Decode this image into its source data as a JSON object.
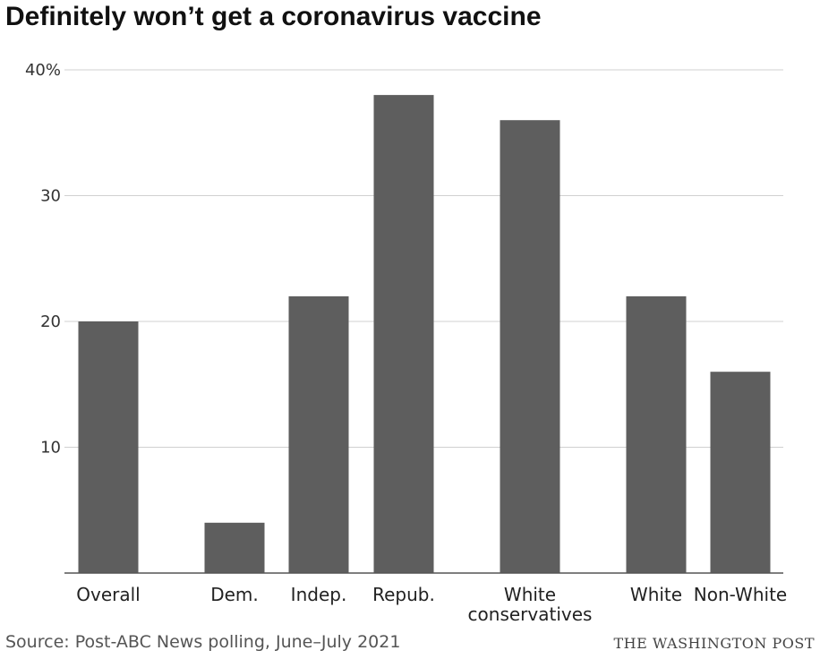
{
  "chart_data": {
    "type": "bar",
    "title": "Definitely won’t get a coronavirus vaccine",
    "categories": [
      "Overall",
      "Dem.",
      "Indep.",
      "Repub.",
      "White conservatives",
      "White",
      "Non-White"
    ],
    "category_lines": [
      [
        "Overall"
      ],
      [
        "Dem."
      ],
      [
        "Indep."
      ],
      [
        "Repub."
      ],
      [
        "White",
        "conservatives"
      ],
      [
        "White"
      ],
      [
        "Non-White"
      ]
    ],
    "values": [
      20,
      4,
      22,
      38,
      36,
      22,
      16
    ],
    "ylim": [
      0,
      40
    ],
    "yticks": [
      10,
      20,
      30,
      40
    ],
    "ytick_labels": [
      "10",
      "20",
      "30",
      "40%"
    ],
    "grid": true,
    "bar_color": "#5e5e5e",
    "grid_color": "#d0d0d0"
  },
  "footer": {
    "source": "Source: Post-ABC News polling, June–July 2021",
    "credit": "THE WASHINGTON POST"
  }
}
